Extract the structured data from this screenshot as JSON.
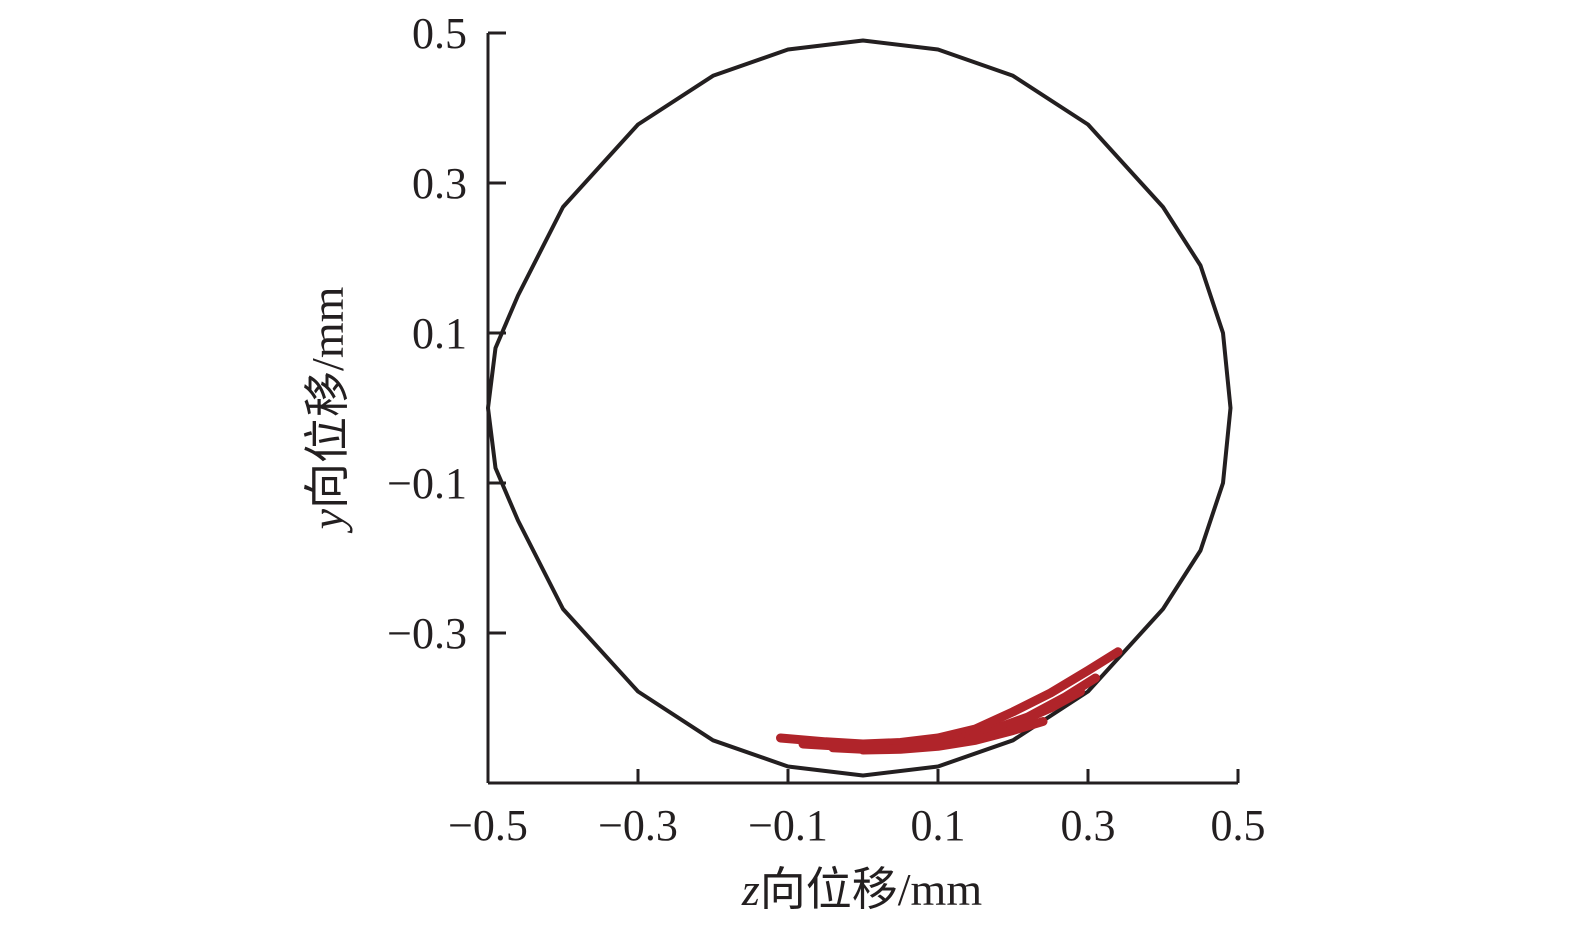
{
  "chart_data": {
    "type": "scatter",
    "xlabel": {
      "var": "z",
      "rest": "向位移/mm"
    },
    "ylabel": {
      "var": "y",
      "rest": "向位移/mm"
    },
    "xlim": [
      -0.5,
      0.5
    ],
    "ylim": [
      -0.5,
      0.5
    ],
    "xticks": [
      -0.5,
      -0.3,
      -0.1,
      0.1,
      0.3,
      0.5
    ],
    "yticks": [
      -0.3,
      -0.1,
      0.1,
      0.3,
      0.5
    ],
    "x_tick_labels": [
      "−0.5",
      "−0.3",
      "−0.1",
      "0.1",
      "0.3",
      "0.5"
    ],
    "y_tick_labels": [
      "−0.3",
      "−0.1",
      "0.1",
      "0.3",
      "0.5"
    ],
    "grid": false,
    "series": [
      {
        "role": "boundary",
        "color": "#231f20",
        "x": [
          0.0,
          0.1,
          0.2,
          0.3,
          0.4,
          0.45,
          0.48,
          0.49,
          0.48,
          0.45,
          0.4,
          0.3,
          0.2,
          0.1,
          0.0,
          -0.1,
          -0.2,
          -0.3,
          -0.4,
          -0.46,
          -0.49,
          -0.5,
          -0.49,
          -0.46,
          -0.4,
          -0.3,
          -0.2,
          -0.1,
          0.0
        ],
        "y": [
          0.49,
          0.478,
          0.443,
          0.378,
          0.268,
          0.19,
          0.1,
          0.0,
          -0.1,
          -0.19,
          -0.268,
          -0.378,
          -0.443,
          -0.478,
          -0.49,
          -0.478,
          -0.443,
          -0.378,
          -0.268,
          -0.15,
          -0.08,
          0.0,
          0.08,
          0.15,
          0.268,
          0.378,
          0.443,
          0.478,
          0.49
        ]
      },
      {
        "role": "trajectory",
        "color": "#b0242a",
        "segments": [
          {
            "x": [
              -0.11,
              -0.05,
              0.0,
              0.05,
              0.1,
              0.15,
              0.2,
              0.25,
              0.3,
              0.34
            ],
            "y": [
              -0.44,
              -0.445,
              -0.448,
              -0.446,
              -0.44,
              -0.428,
              -0.405,
              -0.38,
              -0.35,
              -0.325
            ]
          },
          {
            "x": [
              -0.08,
              -0.03,
              0.02,
              0.07,
              0.12,
              0.17,
              0.22,
              0.27,
              0.31
            ],
            "y": [
              -0.448,
              -0.451,
              -0.452,
              -0.449,
              -0.443,
              -0.43,
              -0.412,
              -0.385,
              -0.36
            ]
          },
          {
            "x": [
              -0.04,
              0.0,
              0.05,
              0.1,
              0.15,
              0.2,
              0.25,
              0.29
            ],
            "y": [
              -0.453,
              -0.455,
              -0.454,
              -0.449,
              -0.44,
              -0.422,
              -0.4,
              -0.378
            ]
          },
          {
            "x": [
              0.0,
              0.05,
              0.1,
              0.15,
              0.2,
              0.24
            ],
            "y": [
              -0.456,
              -0.455,
              -0.451,
              -0.443,
              -0.43,
              -0.418
            ]
          }
        ]
      }
    ]
  }
}
